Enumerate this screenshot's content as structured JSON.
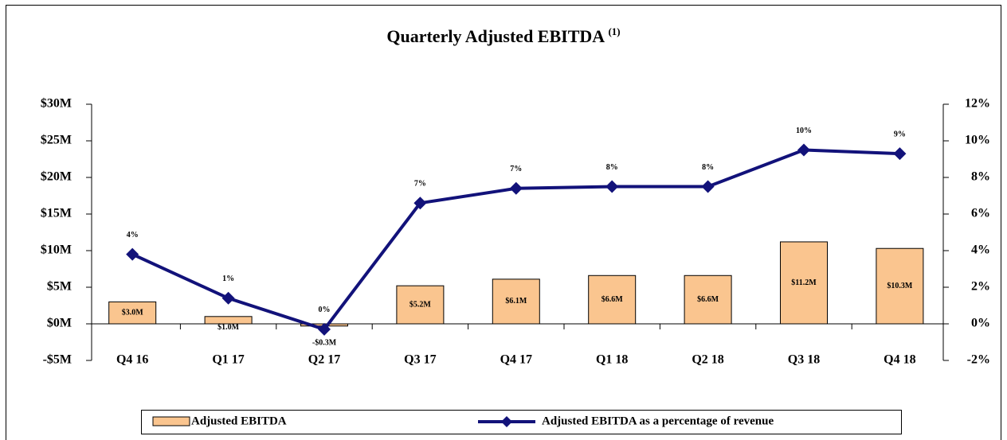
{
  "chart_data": {
    "type": "bar_line",
    "title": "Quarterly Adjusted EBITDA",
    "title_note": "(1)",
    "categories": [
      "Q4 16",
      "Q1 17",
      "Q2 17",
      "Q3 17",
      "Q4 17",
      "Q1 18",
      "Q2 18",
      "Q3 18",
      "Q4 18"
    ],
    "series": [
      {
        "name": "Adjusted EBITDA",
        "color": "#fac58f",
        "values": [
          3.0,
          1.0,
          -0.3,
          5.2,
          6.1,
          6.6,
          6.6,
          11.2,
          10.3
        ],
        "value_labels": [
          "$3.0M",
          "$1.0M",
          "-$0.3M",
          "$5.2M",
          "$6.1M",
          "$6.6M",
          "$6.6M",
          "$11.2M",
          "$10.3M"
        ]
      },
      {
        "name": "Adjusted EBITDA as a percentage of revenue",
        "color": "#12127a",
        "axis": "y2",
        "values": [
          3.8,
          1.4,
          -0.3,
          6.6,
          7.4,
          7.5,
          7.5,
          9.5,
          9.3
        ],
        "value_labels": [
          "4%",
          "1%",
          "0%",
          "7%",
          "7%",
          "8%",
          "8%",
          "10%",
          "9%"
        ]
      }
    ],
    "ylim": [
      -5,
      30
    ],
    "yticks": [
      {
        "value": -5,
        "label": "-$5M"
      },
      {
        "value": 0,
        "label": "$0M"
      },
      {
        "value": 5,
        "label": "$5M"
      },
      {
        "value": 10,
        "label": "$10M"
      },
      {
        "value": 15,
        "label": "$15M"
      },
      {
        "value": 20,
        "label": "$20M"
      },
      {
        "value": 25,
        "label": "$25M"
      },
      {
        "value": 30,
        "label": "$30M"
      }
    ],
    "y2lim": [
      -2,
      12
    ],
    "y2ticks": [
      {
        "value": -2,
        "label": "-2%"
      },
      {
        "value": 0,
        "label": "0%"
      },
      {
        "value": 2,
        "label": "2%"
      },
      {
        "value": 4,
        "label": "4%"
      },
      {
        "value": 6,
        "label": "6%"
      },
      {
        "value": 8,
        "label": "8%"
      },
      {
        "value": 10,
        "label": "10%"
      },
      {
        "value": 12,
        "label": "12%"
      }
    ],
    "legend": "bottom"
  }
}
